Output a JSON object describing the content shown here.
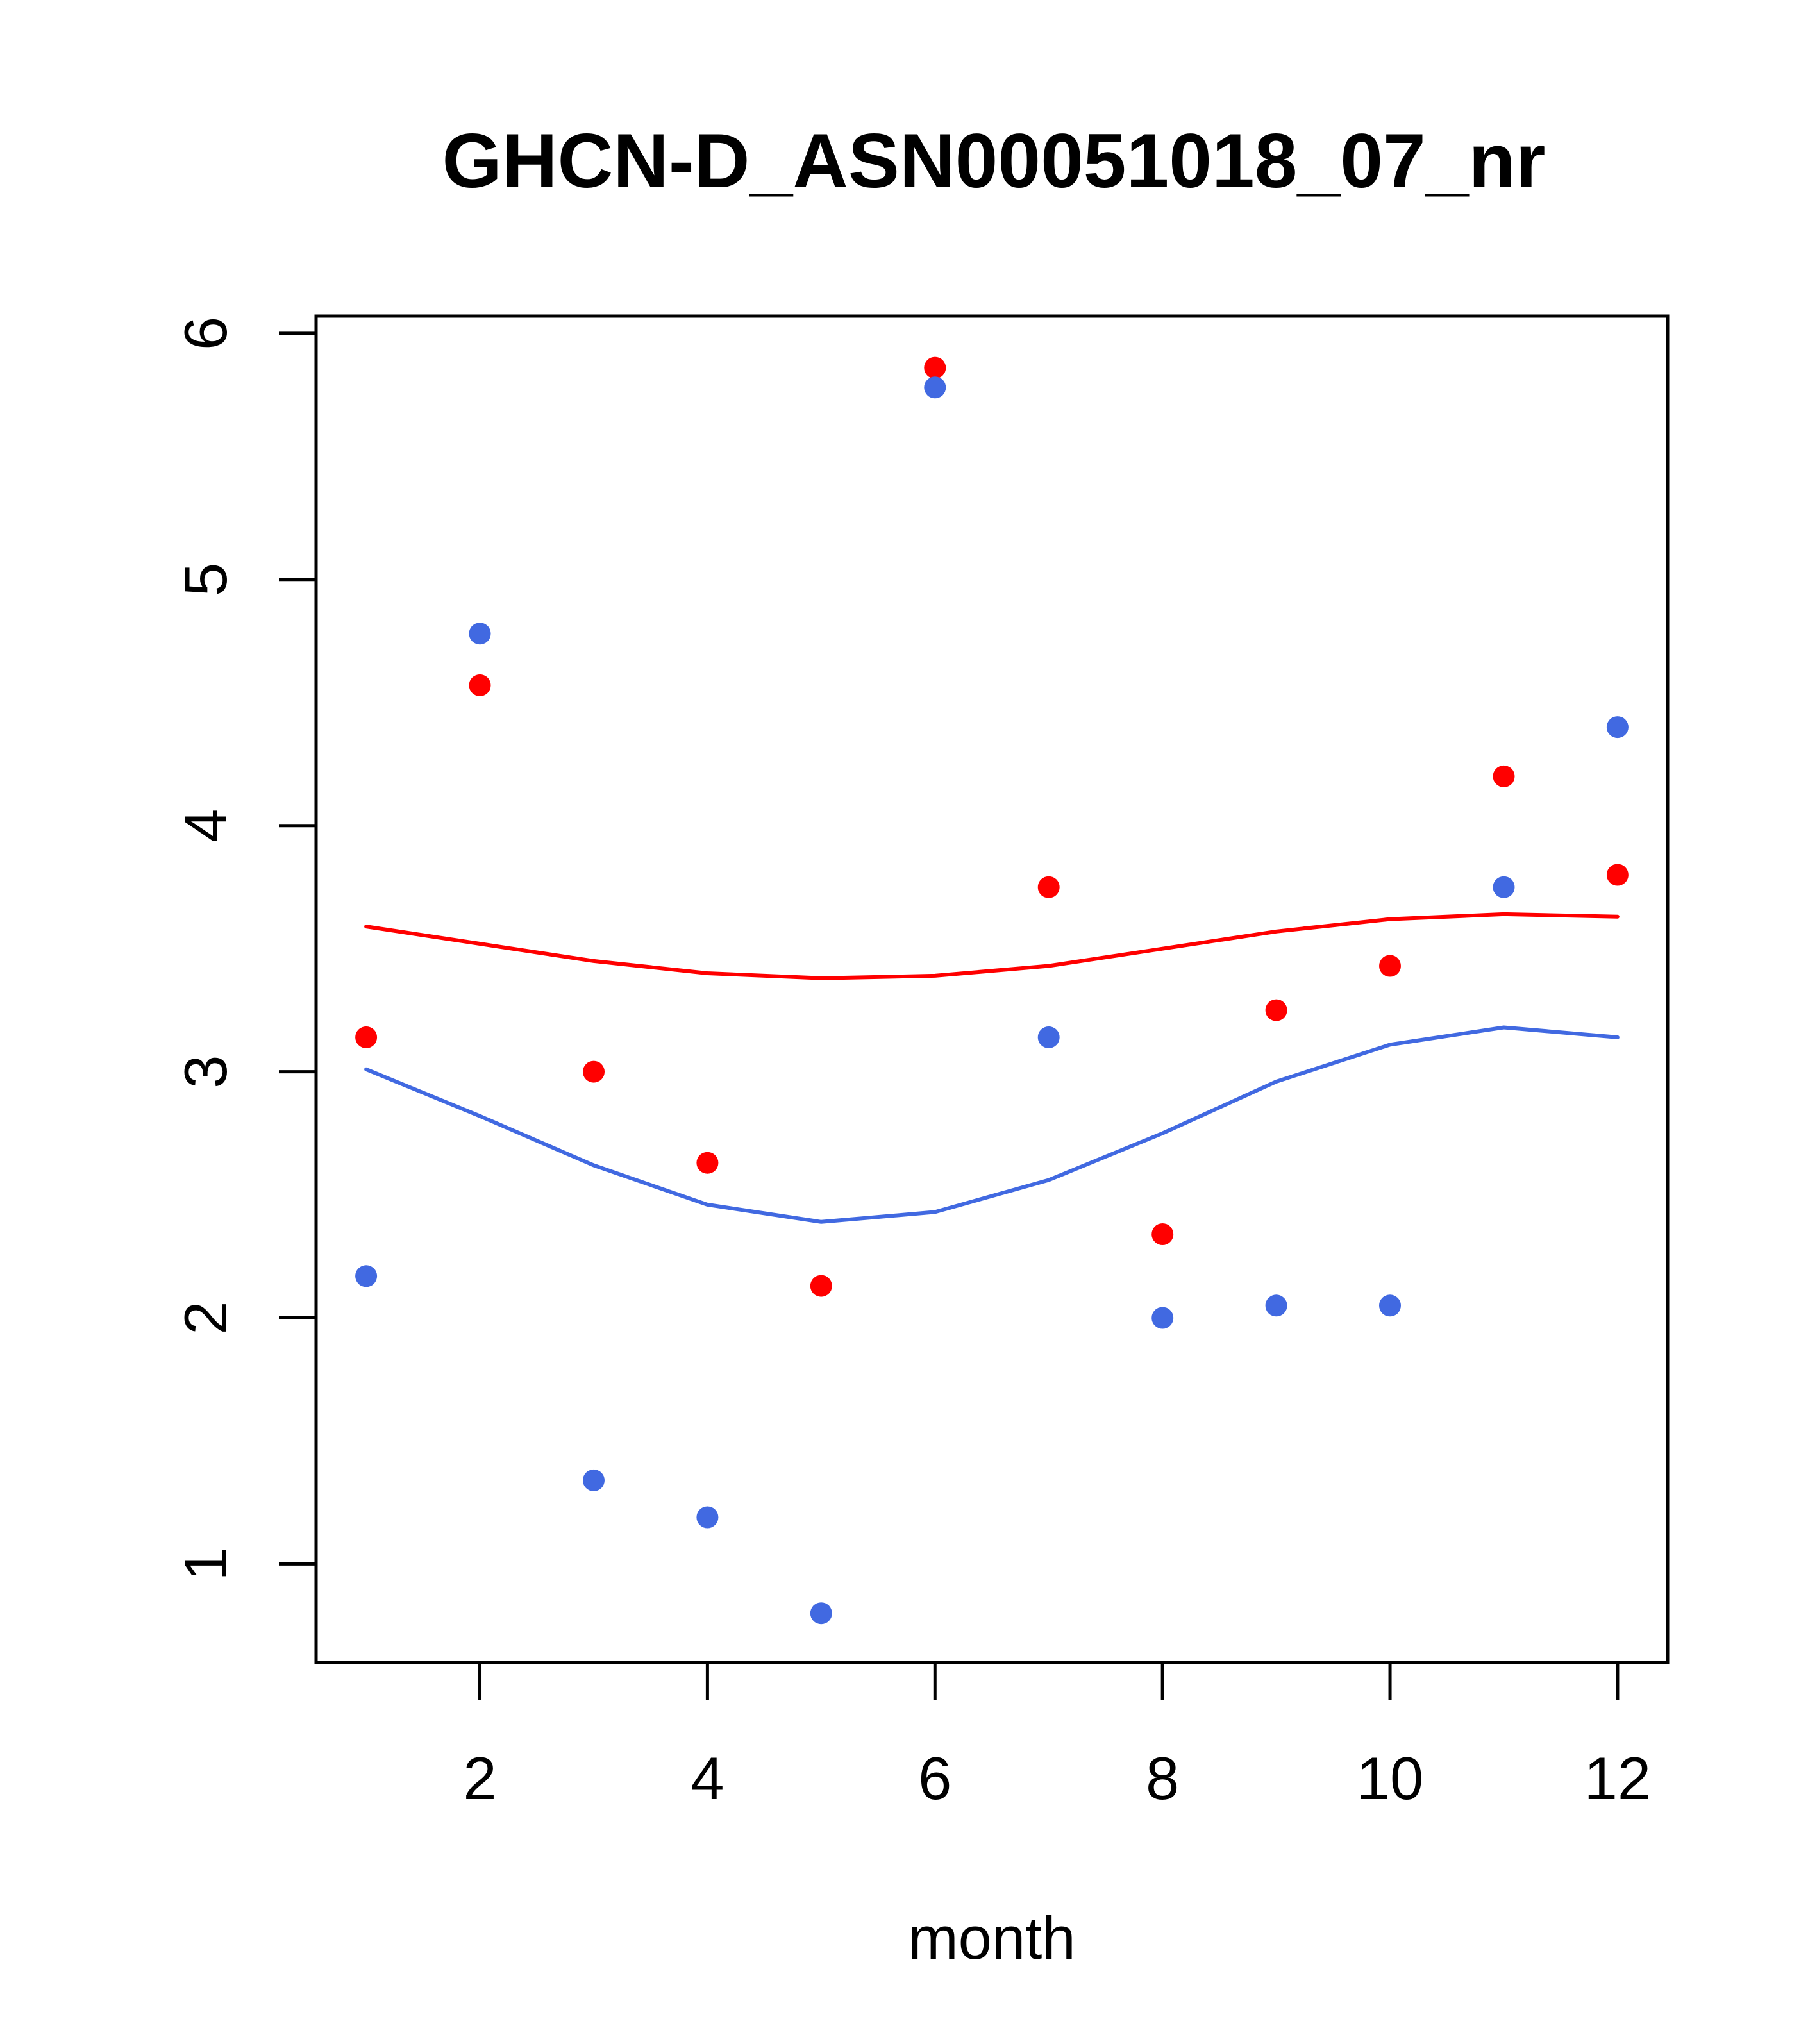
{
  "chart_data": {
    "type": "scatter",
    "title": "GHCN-D_ASN00051018_07_nr",
    "xlabel": "month",
    "ylabel": "",
    "xlim": [
      0.56,
      12.44
    ],
    "ylim": [
      0.6,
      6.07
    ],
    "xticks": [
      2,
      4,
      6,
      8,
      10,
      12
    ],
    "yticks": [
      1,
      2,
      3,
      4,
      5,
      6
    ],
    "grid": false,
    "legend": "none",
    "series": [
      {
        "kind": "points",
        "color": "#FF0000",
        "x": [
          1,
          2,
          3,
          4,
          5,
          6,
          7,
          8,
          9,
          10,
          11,
          12
        ],
        "y": [
          3.14,
          4.57,
          3.0,
          2.63,
          2.13,
          5.86,
          3.75,
          2.34,
          3.25,
          3.43,
          4.2,
          3.8
        ]
      },
      {
        "kind": "points",
        "color": "#4169E1",
        "x": [
          1,
          2,
          3,
          4,
          5,
          6,
          7,
          8,
          9,
          10,
          11,
          12
        ],
        "y": [
          2.17,
          4.78,
          1.34,
          1.19,
          0.8,
          5.78,
          3.14,
          2.0,
          2.05,
          2.05,
          3.75,
          4.4
        ]
      },
      {
        "kind": "line",
        "color": "#FF0000",
        "x": [
          1,
          2,
          3,
          4,
          5,
          6,
          7,
          8,
          9,
          10,
          11,
          12
        ],
        "y": [
          3.59,
          3.52,
          3.45,
          3.4,
          3.38,
          3.39,
          3.43,
          3.5,
          3.57,
          3.62,
          3.64,
          3.63
        ]
      },
      {
        "kind": "line",
        "color": "#4169E1",
        "x": [
          1,
          2,
          3,
          4,
          5,
          6,
          7,
          8,
          9,
          10,
          11,
          12
        ],
        "y": [
          3.01,
          2.82,
          2.62,
          2.46,
          2.39,
          2.43,
          2.56,
          2.75,
          2.96,
          3.11,
          3.18,
          3.14
        ]
      }
    ]
  }
}
